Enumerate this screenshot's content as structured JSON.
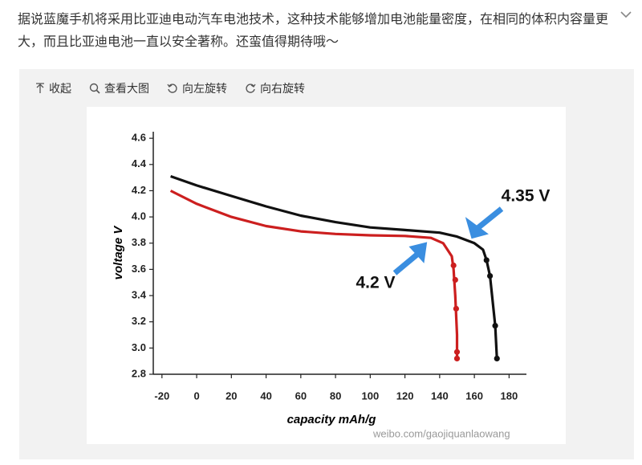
{
  "post": {
    "text": "据说蓝魔手机将采用比亚迪电动汽车电池技术，这种技术能够增加电池能量密度，在相同的体积内容量更大，而且比亚迪电池一直以安全著称。还蛮值得期待哦～"
  },
  "toolbar": {
    "items": [
      "收起",
      "查看大图",
      "向左旋转",
      "向右旋转"
    ]
  },
  "watermark": "weibo.com/gaojiquanlaowang",
  "chart_data": {
    "type": "line",
    "x_label": "capacity mAh/g",
    "y_label": "voltage V",
    "xlim": [
      -25,
      190
    ],
    "xticks": [
      -20,
      0,
      20,
      40,
      60,
      80,
      100,
      120,
      140,
      160,
      180
    ],
    "ylim": [
      2.8,
      4.65
    ],
    "yticks": [
      2.8,
      {
        "value": 3,
        "label": "3.0"
      },
      3.2,
      3.4,
      3.6,
      3.8,
      {
        "value": 4,
        "label": "4.0"
      },
      4.2,
      4.4,
      4.6
    ],
    "annotations": [
      "4.35 V",
      "4.2 V"
    ],
    "series": [
      {
        "color": "#111111",
        "mode": "line",
        "x": [
          -15,
          0,
          20,
          40,
          60,
          80,
          100,
          120,
          140,
          150,
          160,
          165,
          167,
          169,
          172,
          173
        ],
        "values": [
          4.31,
          4.24,
          4.16,
          4.08,
          4.01,
          3.96,
          3.92,
          3.9,
          3.88,
          3.85,
          3.8,
          3.75,
          3.67,
          3.55,
          3.17,
          2.92
        ]
      },
      {
        "color": "#111111",
        "mode": "markers",
        "x": [
          167,
          169,
          172,
          173
        ],
        "values": [
          3.67,
          3.55,
          3.17,
          2.92
        ]
      },
      {
        "color": "#cc1f1f",
        "mode": "line",
        "x": [
          -15,
          0,
          20,
          40,
          60,
          80,
          100,
          120,
          135,
          142,
          147,
          148,
          149,
          150,
          150
        ],
        "values": [
          4.2,
          4.1,
          4.0,
          3.93,
          3.89,
          3.87,
          3.86,
          3.855,
          3.84,
          3.8,
          3.7,
          3.6,
          3.4,
          3.1,
          2.92
        ]
      },
      {
        "color": "#cc1f1f",
        "mode": "markers",
        "x": [
          148,
          149,
          149.5,
          150,
          150
        ],
        "values": [
          3.63,
          3.52,
          3.3,
          2.97,
          2.92
        ]
      }
    ]
  }
}
